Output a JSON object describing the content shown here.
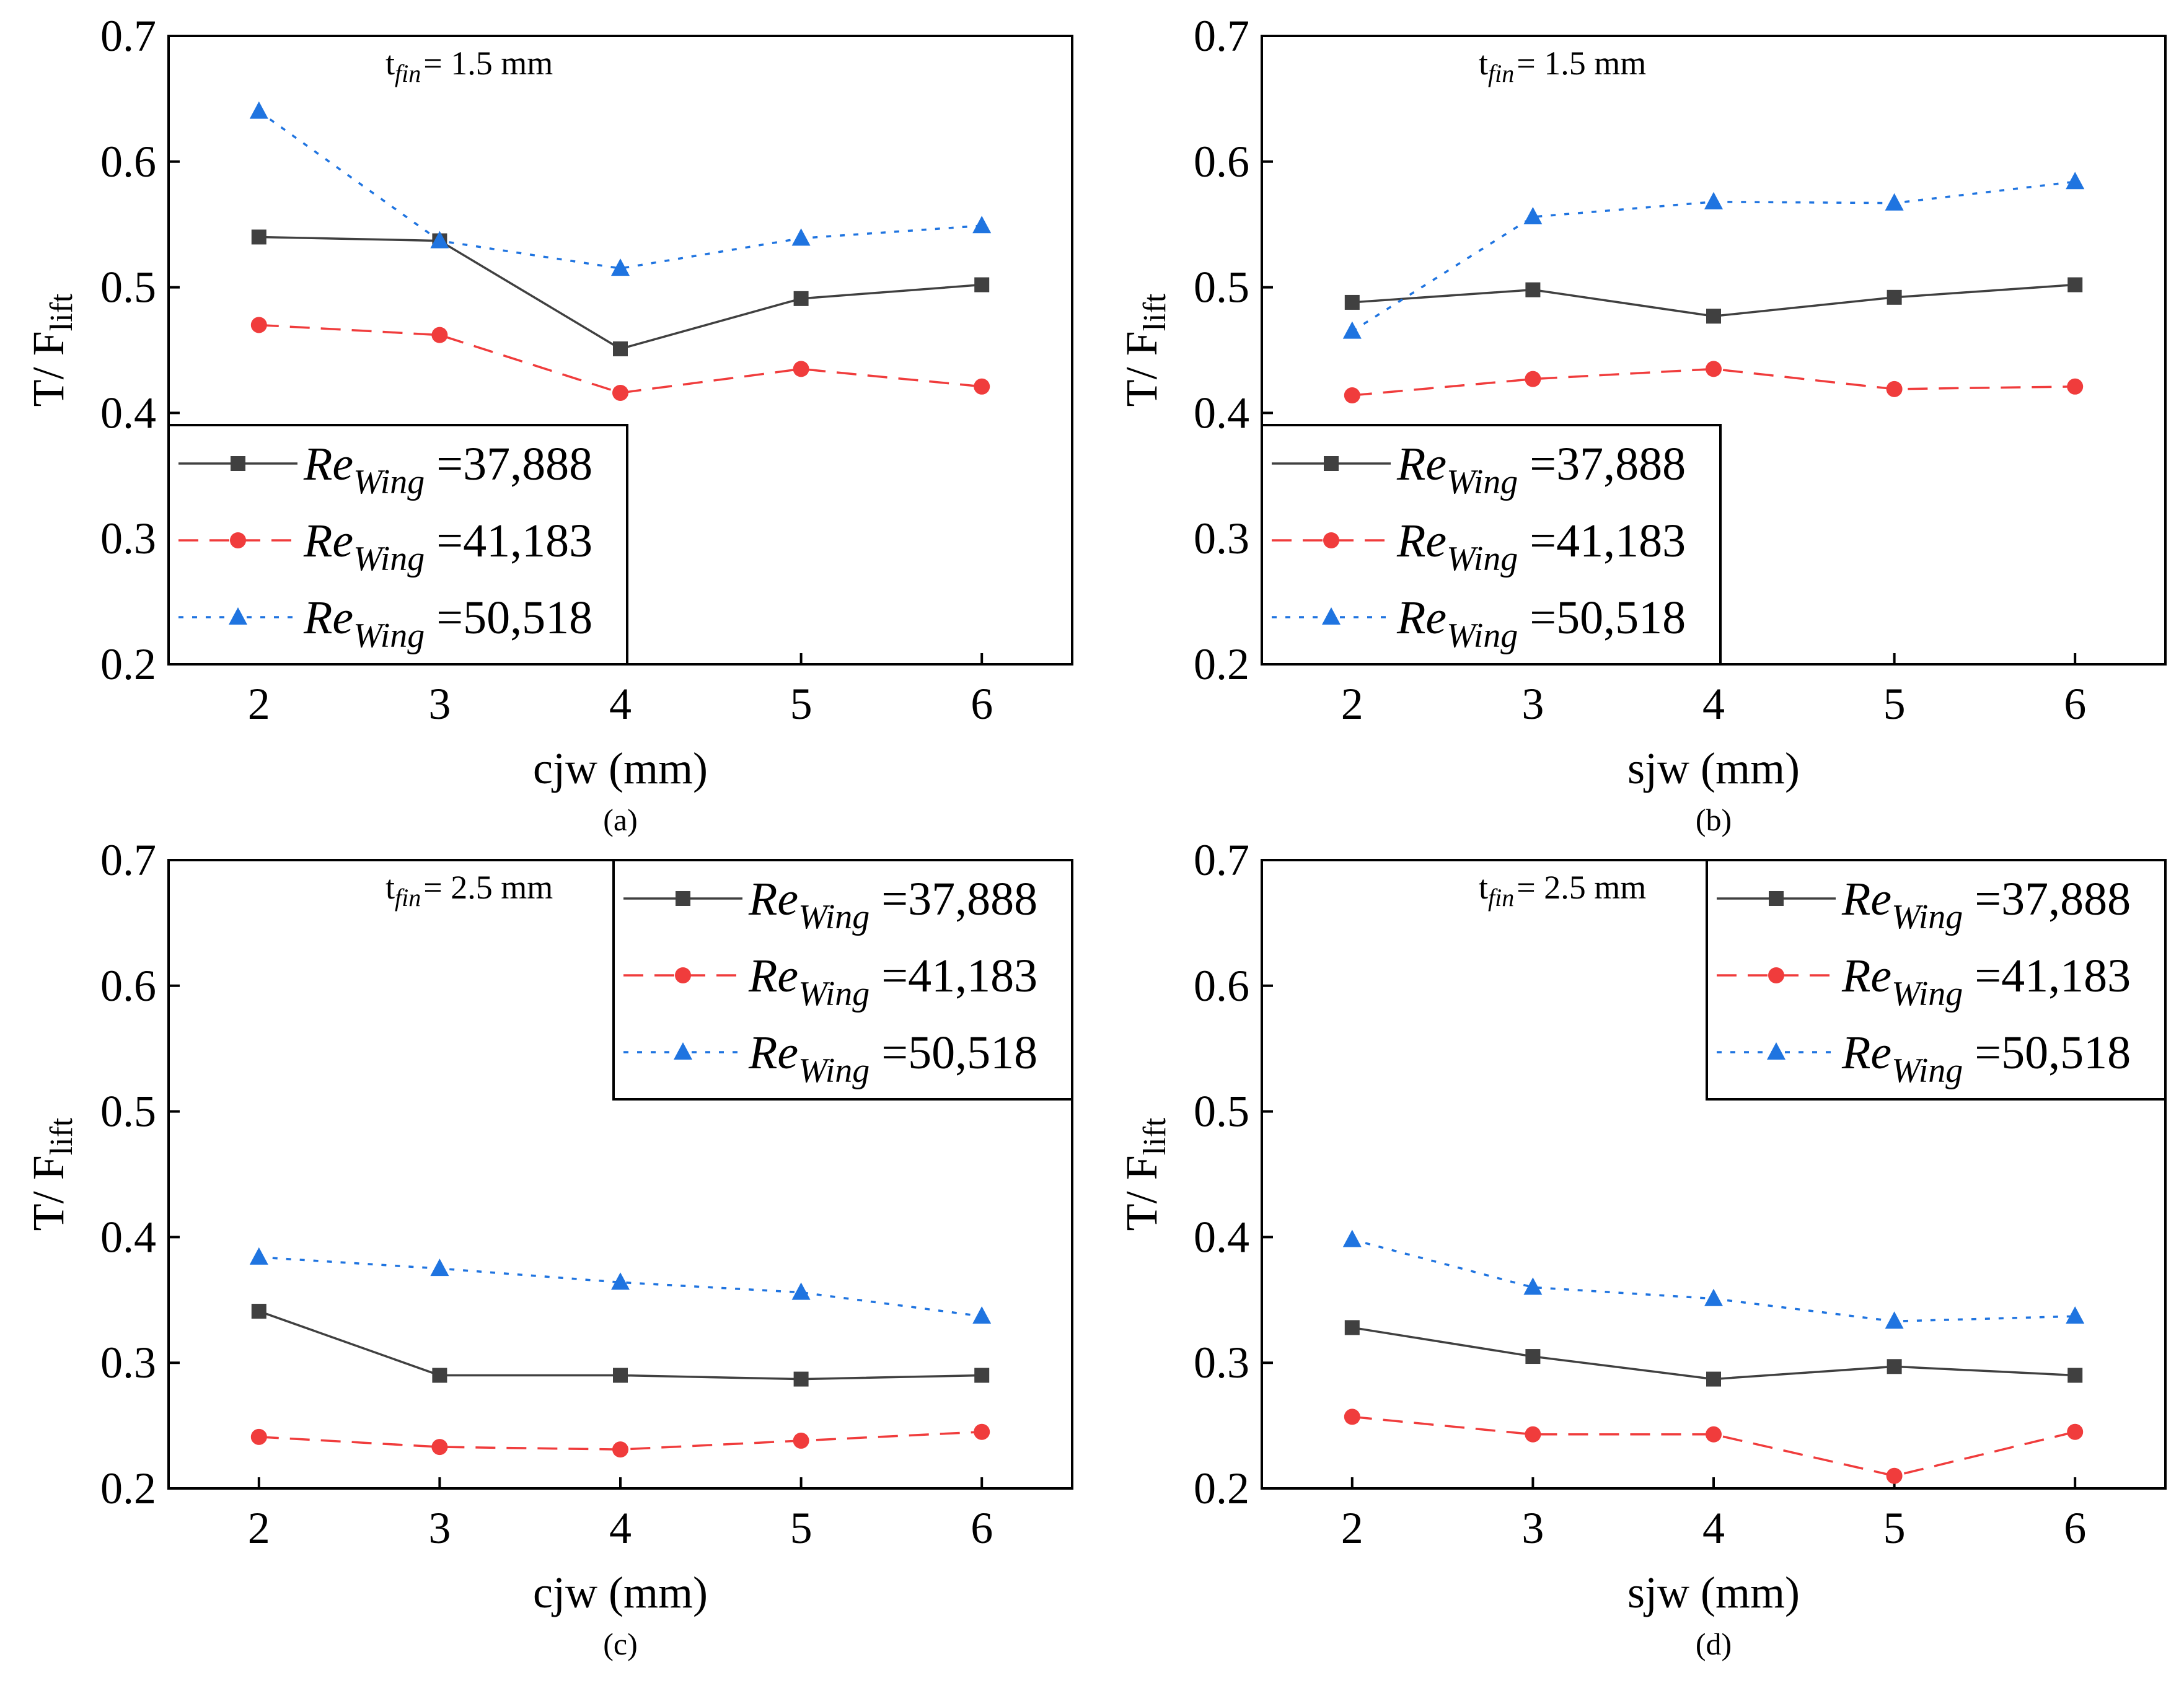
{
  "colors": {
    "series_black": "#404040",
    "series_red": "#f03c3c",
    "series_blue": "#1f74e0"
  },
  "legend_entries": [
    {
      "prefix": "Re",
      "sub": "Wing",
      "suffix": " =37,888"
    },
    {
      "prefix": "Re",
      "sub": "Wing",
      "suffix": " =41,183"
    },
    {
      "prefix": "Re",
      "sub": "Wing",
      "suffix": " =50,518"
    }
  ],
  "chart_data": [
    {
      "type": "line",
      "panel_label": "(a)",
      "note": {
        "t": "t",
        "sub": "fin",
        "rest": "= 1.5 mm"
      },
      "xlabel": "cjw (mm)",
      "ylabel": {
        "main": "T/ F",
        "sub": "lift"
      },
      "x": [
        2,
        3,
        4,
        5,
        6
      ],
      "xlim": [
        1.5,
        6.5
      ],
      "ylim": [
        0.2,
        0.7
      ],
      "yticks": [
        "0.2",
        "0.3",
        "0.4",
        "0.5",
        "0.6",
        "0.7"
      ],
      "xticks": [
        "2",
        "3",
        "4",
        "5",
        "6"
      ],
      "legend_position": "bottom-left",
      "series": [
        {
          "name": "Re_Wing =37,888",
          "marker": "square",
          "line": "solid",
          "values": [
            0.54,
            0.537,
            0.451,
            0.491,
            0.502
          ]
        },
        {
          "name": "Re_Wing =41,183",
          "marker": "circle",
          "line": "dashed",
          "values": [
            0.47,
            0.462,
            0.416,
            0.435,
            0.421
          ]
        },
        {
          "name": "Re_Wing =50,518",
          "marker": "triangle",
          "line": "dotted",
          "values": [
            0.64,
            0.537,
            0.515,
            0.539,
            0.549
          ]
        }
      ]
    },
    {
      "type": "line",
      "panel_label": "(b)",
      "note": {
        "t": "t",
        "sub": "fin",
        "rest": "= 1.5 mm"
      },
      "xlabel": "sjw (mm)",
      "ylabel": {
        "main": "T/ F",
        "sub": "lift"
      },
      "x": [
        2,
        3,
        4,
        5,
        6
      ],
      "xlim": [
        1.5,
        6.5
      ],
      "ylim": [
        0.2,
        0.7
      ],
      "yticks": [
        "0.2",
        "0.3",
        "0.4",
        "0.5",
        "0.6",
        "0.7"
      ],
      "xticks": [
        "2",
        "3",
        "4",
        "5",
        "6"
      ],
      "legend_position": "bottom-left",
      "series": [
        {
          "name": "Re_Wing =37,888",
          "marker": "square",
          "line": "solid",
          "values": [
            0.488,
            0.498,
            0.477,
            0.492,
            0.502
          ]
        },
        {
          "name": "Re_Wing =41,183",
          "marker": "circle",
          "line": "dashed",
          "values": [
            0.414,
            0.427,
            0.435,
            0.419,
            0.421
          ]
        },
        {
          "name": "Re_Wing =50,518",
          "marker": "triangle",
          "line": "dotted",
          "values": [
            0.465,
            0.556,
            0.568,
            0.567,
            0.584
          ]
        }
      ]
    },
    {
      "type": "line",
      "panel_label": "(c)",
      "note": {
        "t": "t",
        "sub": "fin",
        "rest": "= 2.5 mm"
      },
      "xlabel": "cjw (mm)",
      "ylabel": {
        "main": "T/ F",
        "sub": "lift"
      },
      "x": [
        2,
        3,
        4,
        5,
        6
      ],
      "xlim": [
        1.5,
        6.5
      ],
      "ylim": [
        0.2,
        0.7
      ],
      "yticks": [
        "0.2",
        "0.3",
        "0.4",
        "0.5",
        "0.6",
        "0.7"
      ],
      "xticks": [
        "2",
        "3",
        "4",
        "5",
        "6"
      ],
      "legend_position": "top-right",
      "series": [
        {
          "name": "Re_Wing =37,888",
          "marker": "square",
          "line": "solid",
          "values": [
            0.341,
            0.29,
            0.29,
            0.287,
            0.29
          ]
        },
        {
          "name": "Re_Wing =41,183",
          "marker": "circle",
          "line": "dashed",
          "values": [
            0.241,
            0.233,
            0.231,
            0.238,
            0.245
          ]
        },
        {
          "name": "Re_Wing =50,518",
          "marker": "triangle",
          "line": "dotted",
          "values": [
            0.384,
            0.375,
            0.364,
            0.356,
            0.337
          ]
        }
      ]
    },
    {
      "type": "line",
      "panel_label": "(d)",
      "note": {
        "t": "t",
        "sub": "fin",
        "rest": "= 2.5 mm"
      },
      "xlabel": "sjw (mm)",
      "ylabel": {
        "main": "T/ F",
        "sub": "lift"
      },
      "x": [
        2,
        3,
        4,
        5,
        6
      ],
      "xlim": [
        1.5,
        6.5
      ],
      "ylim": [
        0.2,
        0.7
      ],
      "yticks": [
        "0.2",
        "0.3",
        "0.4",
        "0.5",
        "0.6",
        "0.7"
      ],
      "xticks": [
        "2",
        "3",
        "4",
        "5",
        "6"
      ],
      "legend_position": "top-right",
      "series": [
        {
          "name": "Re_Wing =37,888",
          "marker": "square",
          "line": "solid",
          "values": [
            0.328,
            0.305,
            0.287,
            0.297,
            0.29
          ]
        },
        {
          "name": "Re_Wing =41,183",
          "marker": "circle",
          "line": "dashed",
          "values": [
            0.257,
            0.243,
            0.243,
            0.21,
            0.245
          ]
        },
        {
          "name": "Re_Wing =50,518",
          "marker": "triangle",
          "line": "dotted",
          "values": [
            0.398,
            0.36,
            0.351,
            0.333,
            0.337
          ]
        }
      ]
    }
  ]
}
